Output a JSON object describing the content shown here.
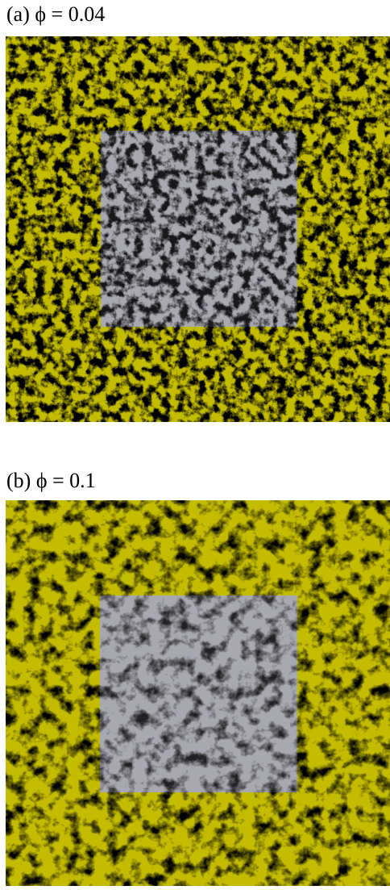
{
  "panels": [
    {
      "label": "(a) ϕ = 0.04"
    },
    {
      "label": "(b) ϕ = 0.1"
    }
  ]
}
